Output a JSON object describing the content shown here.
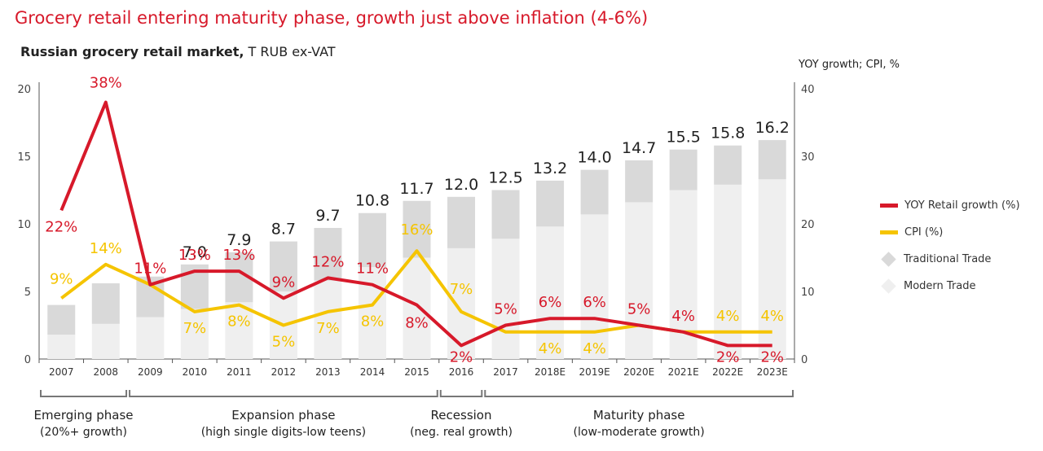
{
  "headline": "Grocery retail entering maturity phase, growth just above inflation (4-6%)",
  "subtitle_bold": "Russian grocery retail market,",
  "subtitle_rest": " T RUB ex-VAT",
  "right_axis_unit": "YOY growth; CPI, %",
  "colors": {
    "yoy": "#d7192a",
    "cpi": "#f5c400",
    "traditional": "#d9d9d9",
    "modern": "#efefef"
  },
  "legend": [
    {
      "key": "yoy",
      "label": "YOY Retail growth (%)"
    },
    {
      "key": "cpi",
      "label": "CPI (%)"
    },
    {
      "key": "traditional",
      "label": "Traditional Trade"
    },
    {
      "key": "modern",
      "label": "Modern Trade"
    }
  ],
  "chart_data": {
    "type": "bar",
    "categories": [
      "2007",
      "2008",
      "2009",
      "2010",
      "2011",
      "2012",
      "2013",
      "2014",
      "2015",
      "2016",
      "2017",
      "2018E",
      "2019E",
      "2020E",
      "2021E",
      "2022E",
      "2023E"
    ],
    "ylim_left": [
      0,
      20
    ],
    "yticks_left": [
      0,
      5,
      10,
      15,
      20
    ],
    "ylim_right": [
      0,
      40
    ],
    "yticks_right": [
      0,
      10,
      20,
      30,
      40
    ],
    "total_labels": [
      "",
      "",
      "",
      "7.0",
      "7.9",
      "8.7",
      "9.7",
      "10.8",
      "11.7",
      "12.0",
      "12.5",
      "13.2",
      "14.0",
      "14.7",
      "15.5",
      "15.8",
      "16.2"
    ],
    "series": [
      {
        "name": "Modern Trade",
        "values": [
          1.8,
          2.6,
          3.1,
          3.7,
          4.2,
          5.0,
          5.8,
          6.8,
          7.5,
          8.2,
          8.9,
          9.8,
          10.7,
          11.6,
          12.5,
          12.9,
          13.3
        ]
      },
      {
        "name": "Traditional Trade",
        "values": [
          2.2,
          3.0,
          3.0,
          3.3,
          3.7,
          3.7,
          3.9,
          4.0,
          4.2,
          3.8,
          3.6,
          3.4,
          3.3,
          3.1,
          3.0,
          2.9,
          2.9
        ]
      },
      {
        "name": "YOY Retail growth (%)",
        "values": [
          22,
          38,
          11,
          13,
          13,
          9,
          12,
          11,
          8,
          2,
          5,
          6,
          6,
          5,
          4,
          2,
          2
        ],
        "labels": [
          "22%",
          "38%",
          "11%",
          "13%",
          "13%",
          "9%",
          "12%",
          "11%",
          "8%",
          "2%",
          "5%",
          "6%",
          "6%",
          "5%",
          "4%",
          "2%",
          "2%"
        ]
      },
      {
        "name": "CPI (%)",
        "values": [
          9,
          14,
          11,
          7,
          8,
          5,
          7,
          8,
          16,
          7,
          4,
          4,
          4,
          5,
          4,
          4,
          4
        ],
        "labels": [
          "9%",
          "14%",
          "",
          "7%",
          "8%",
          "5%",
          "7%",
          "8%",
          "16%",
          "7%",
          "",
          "4%",
          "4%",
          "",
          "",
          "4%",
          "4%"
        ]
      }
    ],
    "phases": [
      {
        "name": "Emerging phase",
        "desc": "(20%+ growth)",
        "from": 0,
        "to": 1
      },
      {
        "name": "Expansion phase",
        "desc": "(high single digits-low teens)",
        "from": 2,
        "to": 8
      },
      {
        "name": "Recession",
        "desc": "(neg. real growth)",
        "from": 9,
        "to": 9
      },
      {
        "name": "Maturity phase",
        "desc": "(low-moderate growth)",
        "from": 10,
        "to": 16
      }
    ]
  }
}
